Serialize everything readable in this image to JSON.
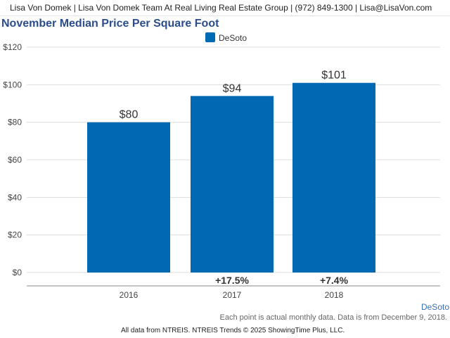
{
  "header": {
    "text": "Lisa Von Domek | Lisa Von Domek Team At Real Living Real Estate Group | (972) 849-1300 | Lisa@LisaVon.com"
  },
  "colors": {
    "bar": "#0069b4",
    "title": "#2b4d8c",
    "grid": "#dddddd",
    "axis_text": "#444444",
    "region_label": "#3a6fb0"
  },
  "chart_data": {
    "type": "bar",
    "title": "November Median Price Per Square Foot",
    "xlabel": "",
    "ylabel": "",
    "categories": [
      "2016",
      "2017",
      "2018"
    ],
    "series": [
      {
        "name": "DeSoto",
        "values": [
          80,
          94,
          101
        ]
      }
    ],
    "data_labels": [
      "$80",
      "$94",
      "$101"
    ],
    "change_labels": [
      "",
      "+17.5%",
      "+7.4%"
    ],
    "ylim": [
      0,
      120
    ],
    "y_ticks": [
      0,
      20,
      40,
      60,
      80,
      100,
      120
    ],
    "y_tick_labels": [
      "$0",
      "$20",
      "$40",
      "$60",
      "$80",
      "$100",
      "$120"
    ],
    "grid": true,
    "legend_position": "top-center",
    "region_label": "DeSoto"
  },
  "footer": {
    "note": "Each point is actual monthly data. Data is from December 9, 2018.",
    "credit": "All data from NTREIS. NTREIS Trends © 2025 ShowingTime Plus, LLC."
  }
}
